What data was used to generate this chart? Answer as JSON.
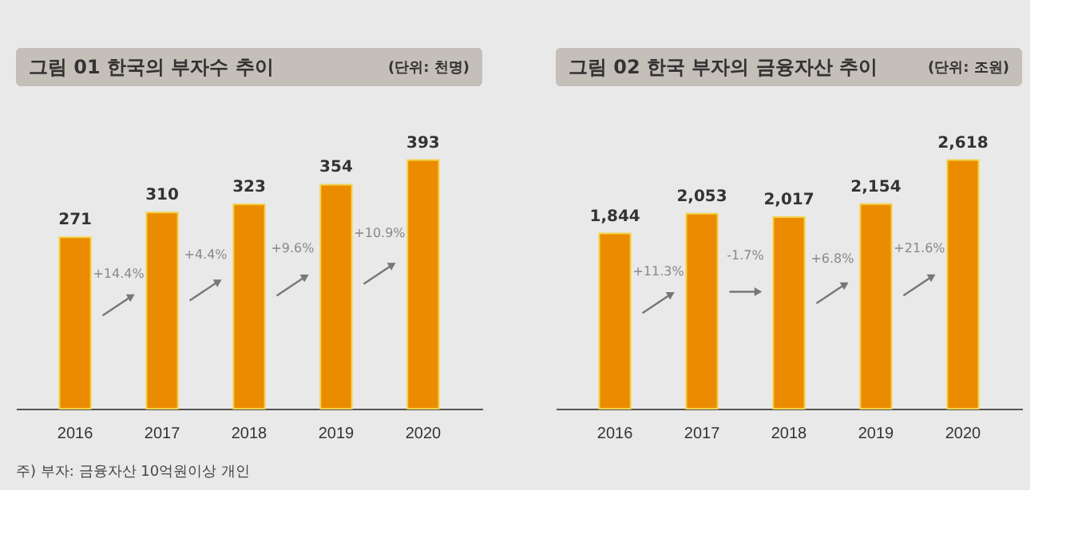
{
  "chart_data": [
    {
      "type": "bar",
      "title": "그림 01  한국의 부자수 추이",
      "subtitle": "(단위: 천명)",
      "categories": [
        "2016",
        "2017",
        "2018",
        "2019",
        "2020"
      ],
      "values": [
        271,
        310,
        323,
        354,
        393
      ],
      "color": "#eb8c00",
      "data_labels": true,
      "annotations": [
        "+14.4%",
        "+4.4%",
        "+9.6%",
        "+10.9%",
        "주) 부자: 금융자산 10억원이상 개인"
      ]
    },
    {
      "type": "bar",
      "title": "그림 02  한국 부자의 금융자산 추이",
      "subtitle": "(단위: 조원)",
      "categories": [
        "2016",
        "2017",
        "2018",
        "2019",
        "2020"
      ],
      "values": [
        1844,
        2053,
        2017,
        2154,
        2618
      ],
      "color": "#eb8c00",
      "value_labels": [
        "1,844",
        "2,053",
        "2,017",
        "2,154",
        "2,618"
      ],
      "annotations": [
        "+11.3%",
        "-1.7%",
        "+6.8%",
        "+21.6%"
      ]
    }
  ]
}
